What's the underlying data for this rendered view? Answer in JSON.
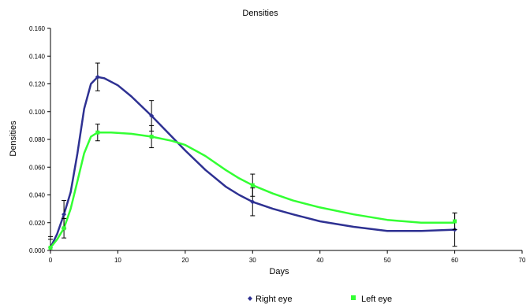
{
  "chart_data": {
    "type": "line",
    "title": "Densities",
    "xlabel": "Days",
    "ylabel": "Densities",
    "xlim": [
      0,
      70
    ],
    "ylim": [
      0,
      0.16
    ],
    "x_ticks": [
      "0",
      "10",
      "20",
      "30",
      "40",
      "50",
      "60",
      "70"
    ],
    "y_ticks": [
      "0.000",
      "0.020",
      "0.040",
      "0.060",
      "0.080",
      "0.100",
      "0.120",
      "0.140",
      "0.160"
    ],
    "grid": false,
    "legend_position": "bottom",
    "series": [
      {
        "name": "Right eye",
        "color": "#2e3192",
        "marker": "diamond",
        "x": [
          0,
          2,
          7,
          15,
          30,
          60
        ],
        "y": [
          0.002,
          0.026,
          0.125,
          0.097,
          0.035,
          0.015
        ],
        "error": [
          0.008,
          0.01,
          0.01,
          0.011,
          0.01,
          0.012
        ],
        "curve": [
          [
            0,
            0.002
          ],
          [
            1,
            0.012
          ],
          [
            2,
            0.026
          ],
          [
            3,
            0.042
          ],
          [
            4,
            0.07
          ],
          [
            5,
            0.102
          ],
          [
            6,
            0.12
          ],
          [
            7,
            0.125
          ],
          [
            8,
            0.124
          ],
          [
            10,
            0.119
          ],
          [
            12,
            0.111
          ],
          [
            15,
            0.097
          ],
          [
            18,
            0.082
          ],
          [
            20,
            0.072
          ],
          [
            23,
            0.058
          ],
          [
            26,
            0.046
          ],
          [
            28,
            0.04
          ],
          [
            30,
            0.035
          ],
          [
            33,
            0.03
          ],
          [
            36,
            0.026
          ],
          [
            40,
            0.021
          ],
          [
            45,
            0.017
          ],
          [
            50,
            0.014
          ],
          [
            55,
            0.014
          ],
          [
            60,
            0.015
          ]
        ]
      },
      {
        "name": "Left eye",
        "color": "#33ff33",
        "marker": "square",
        "x": [
          0,
          2,
          7,
          15,
          30,
          60
        ],
        "y": [
          0.002,
          0.016,
          0.085,
          0.082,
          0.047,
          0.021
        ],
        "error": [
          0.006,
          0.007,
          0.006,
          0.008,
          0.008,
          0.006
        ],
        "curve": [
          [
            0,
            0.002
          ],
          [
            1,
            0.008
          ],
          [
            2,
            0.016
          ],
          [
            3,
            0.03
          ],
          [
            4,
            0.05
          ],
          [
            5,
            0.07
          ],
          [
            6,
            0.082
          ],
          [
            7,
            0.085
          ],
          [
            9,
            0.085
          ],
          [
            12,
            0.084
          ],
          [
            15,
            0.082
          ],
          [
            18,
            0.079
          ],
          [
            20,
            0.076
          ],
          [
            23,
            0.068
          ],
          [
            26,
            0.058
          ],
          [
            28,
            0.052
          ],
          [
            30,
            0.047
          ],
          [
            33,
            0.041
          ],
          [
            36,
            0.036
          ],
          [
            40,
            0.031
          ],
          [
            45,
            0.026
          ],
          [
            50,
            0.022
          ],
          [
            55,
            0.02
          ],
          [
            60,
            0.02
          ]
        ]
      }
    ]
  }
}
